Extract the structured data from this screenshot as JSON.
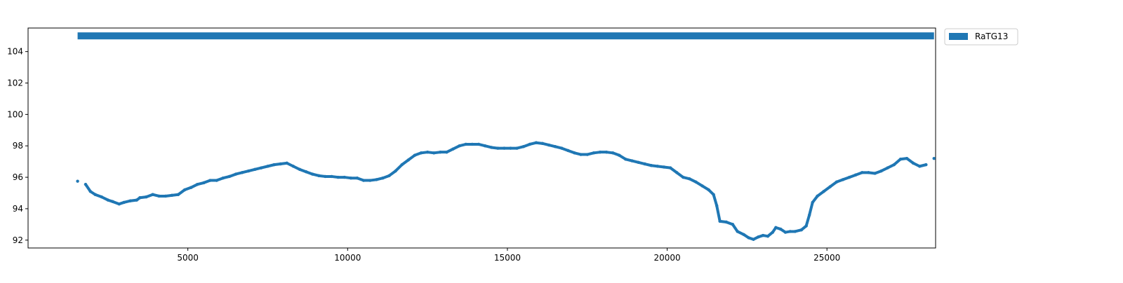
{
  "chart_data": {
    "type": "scatter",
    "title": "",
    "xlabel": "",
    "ylabel": "",
    "xlim": [
      0,
      28400
    ],
    "ylim": [
      91.5,
      105.5
    ],
    "x_ticks": [
      5000,
      10000,
      15000,
      20000,
      25000
    ],
    "y_ticks": [
      92,
      94,
      96,
      98,
      100,
      102,
      104
    ],
    "grid": false,
    "legend_position": "outside-top-right",
    "color": "#1f77b4",
    "series": [
      {
        "name": "RaTG13",
        "type": "range-bar",
        "x_start": 1550,
        "x_end": 28350,
        "y": 105
      },
      {
        "type": "scatter",
        "points": [
          [
            1550,
            95.75
          ],
          [
            1800,
            95.55
          ],
          [
            1950,
            95.1
          ],
          [
            2100,
            94.9
          ],
          [
            2300,
            94.75
          ],
          [
            2500,
            94.55
          ],
          [
            2650,
            94.45
          ],
          [
            2850,
            94.3
          ],
          [
            3000,
            94.4
          ],
          [
            3200,
            94.5
          ],
          [
            3400,
            94.55
          ],
          [
            3500,
            94.7
          ],
          [
            3700,
            94.75
          ],
          [
            3900,
            94.9
          ],
          [
            4100,
            94.8
          ],
          [
            4300,
            94.8
          ],
          [
            4500,
            94.85
          ],
          [
            4700,
            94.9
          ],
          [
            4900,
            95.2
          ],
          [
            5100,
            95.35
          ],
          [
            5300,
            95.55
          ],
          [
            5500,
            95.65
          ],
          [
            5700,
            95.8
          ],
          [
            5900,
            95.8
          ],
          [
            6100,
            95.95
          ],
          [
            6300,
            96.05
          ],
          [
            6500,
            96.2
          ],
          [
            6700,
            96.3
          ],
          [
            6900,
            96.4
          ],
          [
            7100,
            96.5
          ],
          [
            7300,
            96.6
          ],
          [
            7500,
            96.7
          ],
          [
            7700,
            96.8
          ],
          [
            7900,
            96.85
          ],
          [
            8100,
            96.9
          ],
          [
            8300,
            96.7
          ],
          [
            8500,
            96.5
          ],
          [
            8700,
            96.35
          ],
          [
            8900,
            96.2
          ],
          [
            9100,
            96.1
          ],
          [
            9300,
            96.05
          ],
          [
            9500,
            96.05
          ],
          [
            9700,
            96.0
          ],
          [
            9900,
            96.0
          ],
          [
            10100,
            95.95
          ],
          [
            10300,
            95.95
          ],
          [
            10500,
            95.8
          ],
          [
            10700,
            95.8
          ],
          [
            10900,
            95.85
          ],
          [
            11100,
            95.95
          ],
          [
            11300,
            96.1
          ],
          [
            11500,
            96.4
          ],
          [
            11700,
            96.8
          ],
          [
            11900,
            97.1
          ],
          [
            12100,
            97.4
          ],
          [
            12300,
            97.55
          ],
          [
            12500,
            97.6
          ],
          [
            12700,
            97.55
          ],
          [
            12900,
            97.6
          ],
          [
            13100,
            97.6
          ],
          [
            13300,
            97.8
          ],
          [
            13500,
            98.0
          ],
          [
            13700,
            98.1
          ],
          [
            13900,
            98.1
          ],
          [
            14100,
            98.1
          ],
          [
            14300,
            98.0
          ],
          [
            14500,
            97.9
          ],
          [
            14700,
            97.85
          ],
          [
            14900,
            97.85
          ],
          [
            15100,
            97.85
          ],
          [
            15300,
            97.85
          ],
          [
            15500,
            97.95
          ],
          [
            15700,
            98.1
          ],
          [
            15900,
            98.2
          ],
          [
            16100,
            98.15
          ],
          [
            16300,
            98.05
          ],
          [
            16500,
            97.95
          ],
          [
            16700,
            97.85
          ],
          [
            16900,
            97.7
          ],
          [
            17100,
            97.55
          ],
          [
            17300,
            97.45
          ],
          [
            17500,
            97.45
          ],
          [
            17700,
            97.55
          ],
          [
            17900,
            97.6
          ],
          [
            18100,
            97.6
          ],
          [
            18300,
            97.55
          ],
          [
            18500,
            97.4
          ],
          [
            18700,
            97.15
          ],
          [
            18900,
            97.05
          ],
          [
            19100,
            96.95
          ],
          [
            19300,
            96.85
          ],
          [
            19500,
            96.75
          ],
          [
            19700,
            96.7
          ],
          [
            19900,
            96.65
          ],
          [
            20100,
            96.6
          ],
          [
            20300,
            96.3
          ],
          [
            20500,
            96.0
          ],
          [
            20700,
            95.9
          ],
          [
            20900,
            95.7
          ],
          [
            21100,
            95.45
          ],
          [
            21300,
            95.2
          ],
          [
            21450,
            94.9
          ],
          [
            21550,
            94.2
          ],
          [
            21650,
            93.2
          ],
          [
            21850,
            93.15
          ],
          [
            22050,
            93.0
          ],
          [
            22200,
            92.55
          ],
          [
            22400,
            92.35
          ],
          [
            22550,
            92.15
          ],
          [
            22700,
            92.05
          ],
          [
            22850,
            92.2
          ],
          [
            23000,
            92.3
          ],
          [
            23150,
            92.25
          ],
          [
            23300,
            92.5
          ],
          [
            23400,
            92.8
          ],
          [
            23550,
            92.7
          ],
          [
            23700,
            92.5
          ],
          [
            23850,
            92.55
          ],
          [
            24000,
            92.55
          ],
          [
            24200,
            92.65
          ],
          [
            24350,
            92.9
          ],
          [
            24450,
            93.6
          ],
          [
            24550,
            94.4
          ],
          [
            24700,
            94.8
          ],
          [
            24900,
            95.1
          ],
          [
            25100,
            95.4
          ],
          [
            25300,
            95.7
          ],
          [
            25500,
            95.85
          ],
          [
            25700,
            96.0
          ],
          [
            25900,
            96.15
          ],
          [
            26100,
            96.3
          ],
          [
            26300,
            96.3
          ],
          [
            26500,
            96.25
          ],
          [
            26700,
            96.4
          ],
          [
            26900,
            96.6
          ],
          [
            27100,
            96.8
          ],
          [
            27300,
            97.15
          ],
          [
            27500,
            97.2
          ],
          [
            27700,
            96.9
          ],
          [
            27900,
            96.7
          ],
          [
            28100,
            96.8
          ],
          [
            28350,
            97.2
          ]
        ]
      }
    ]
  }
}
